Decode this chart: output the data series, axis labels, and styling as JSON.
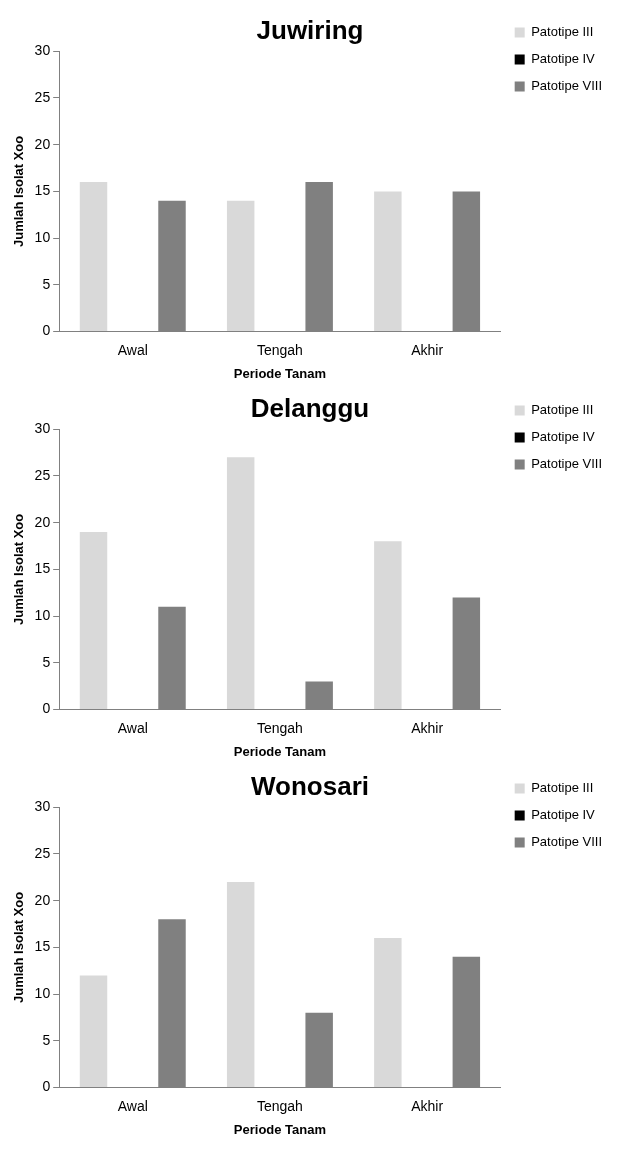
{
  "chart_data": [
    {
      "type": "bar",
      "title": "Juwiring",
      "xlabel": "Periode Tanam",
      "ylabel": "Jumlah Isolat Xoo",
      "categories": [
        "Awal",
        "Tengah",
        "Akhir"
      ],
      "series": [
        {
          "name": "Patotipe III",
          "color": "#d9d9d9",
          "values": [
            16,
            14,
            15
          ]
        },
        {
          "name": "Patotipe IV",
          "color": "#000000",
          "values": [
            0,
            0,
            0
          ]
        },
        {
          "name": "Patotipe VIII",
          "color": "#808080",
          "values": [
            14,
            16,
            15
          ]
        }
      ],
      "ylim": [
        0,
        30
      ],
      "yticks": [
        0,
        5,
        10,
        15,
        20,
        25,
        30
      ],
      "grid": false,
      "legend": "top right"
    },
    {
      "type": "bar",
      "title": "Delanggu",
      "xlabel": "Periode Tanam",
      "ylabel": "Jumlah Isolat Xoo",
      "categories": [
        "Awal",
        "Tengah",
        "Akhir"
      ],
      "series": [
        {
          "name": "Patotipe III",
          "color": "#d9d9d9",
          "values": [
            19,
            27,
            18
          ]
        },
        {
          "name": "Patotipe IV",
          "color": "#000000",
          "values": [
            0,
            0,
            0
          ]
        },
        {
          "name": "Patotipe VIII",
          "color": "#808080",
          "values": [
            11,
            3,
            12
          ]
        }
      ],
      "ylim": [
        0,
        30
      ],
      "yticks": [
        0,
        5,
        10,
        15,
        20,
        25,
        30
      ],
      "grid": false,
      "legend": "top right"
    },
    {
      "type": "bar",
      "title": "Wonosari",
      "xlabel": "Periode Tanam",
      "ylabel": "Jumlah Isolat Xoo",
      "categories": [
        "Awal",
        "Tengah",
        "Akhir"
      ],
      "series": [
        {
          "name": "Patotipe III",
          "color": "#d9d9d9",
          "values": [
            12,
            22,
            16
          ]
        },
        {
          "name": "Patotipe IV",
          "color": "#000000",
          "values": [
            0,
            0,
            0
          ]
        },
        {
          "name": "Patotipe VIII",
          "color": "#808080",
          "values": [
            18,
            8,
            14
          ]
        }
      ],
      "ylim": [
        0,
        30
      ],
      "yticks": [
        0,
        5,
        10,
        15,
        20,
        25,
        30
      ],
      "grid": false,
      "legend": "top right"
    }
  ]
}
